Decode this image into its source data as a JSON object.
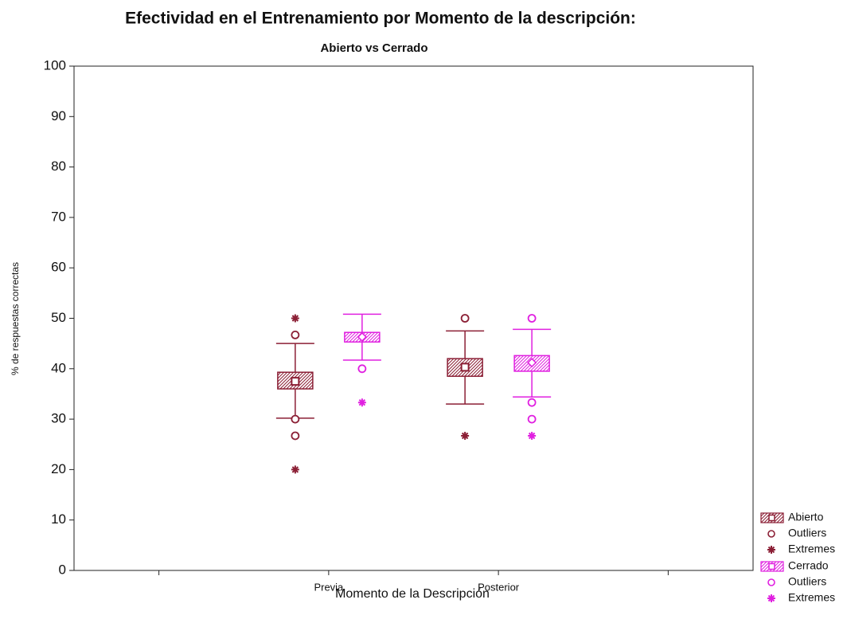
{
  "chart_data": {
    "type": "box",
    "title": "Efectividad en el Entrenamiento por Momento de la descripción:",
    "subtitle": "Abierto vs Cerrado",
    "x_label": "Momento de la Descripción",
    "y_label": "% de respuestas correctas",
    "categories": [
      null,
      "Previa",
      "Posterior",
      null
    ],
    "ylim": [
      0,
      100
    ],
    "yticks": [
      0,
      10,
      20,
      30,
      40,
      50,
      60,
      70,
      80,
      90,
      100
    ],
    "series": [
      {
        "name": "Abierto",
        "color": "#8b1f35",
        "outliers_label": "Outliers",
        "extremes_label": "Extremes",
        "median": [
          null,
          37.5,
          40.3,
          null
        ],
        "q1": [
          null,
          36,
          38.5,
          null
        ],
        "q3": [
          null,
          39.3,
          42,
          null
        ],
        "whisker_low": [
          null,
          30.2,
          33,
          null
        ],
        "whisker_high": [
          null,
          45,
          47.5,
          null
        ],
        "outliers": [
          [],
          [
            46.7,
            30,
            26.7
          ],
          [
            50
          ],
          []
        ],
        "extremes": [
          [],
          [
            50,
            20
          ],
          [
            26.7
          ],
          []
        ]
      },
      {
        "name": "Cerrado",
        "color": "#e020e0",
        "outliers_label": "Outliers",
        "extremes_label": "Extremes",
        "median": [
          null,
          46.3,
          41.2,
          null
        ],
        "q1": [
          null,
          45.3,
          39.5,
          null
        ],
        "q3": [
          null,
          47.2,
          42.6,
          null
        ],
        "whisker_low": [
          null,
          41.7,
          34.4,
          null
        ],
        "whisker_high": [
          null,
          50.8,
          47.8,
          null
        ],
        "outliers": [
          [],
          [
            40
          ],
          [
            50,
            33.3,
            30
          ],
          []
        ],
        "extremes": [
          [],
          [
            33.3
          ],
          [
            26.7
          ],
          []
        ]
      }
    ]
  }
}
